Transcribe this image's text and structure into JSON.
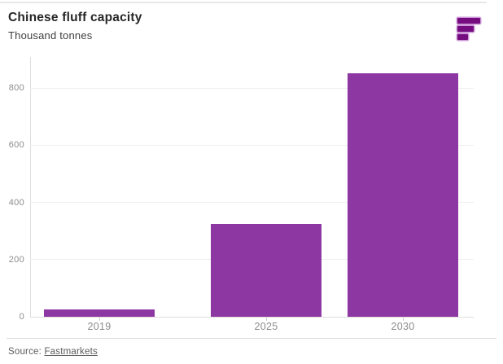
{
  "header": {
    "title": "Chinese fluff capacity",
    "subtitle": "Thousand tonnes"
  },
  "logo": {
    "name": "fastmarkets-logo",
    "color": "#750d81"
  },
  "chart_data": {
    "type": "bar",
    "title": "Chinese fluff capacity",
    "subtitle": "Thousand tonnes",
    "categories": [
      "2019",
      "2025",
      "2030"
    ],
    "values": [
      25,
      325,
      850
    ],
    "xlabel": "",
    "ylabel": "Thousand tonnes",
    "ylim": [
      0,
      900
    ],
    "yticks": [
      0,
      200,
      400,
      600,
      800
    ],
    "bar_color": "#8d37a2",
    "grid": true,
    "legend": false
  },
  "footer": {
    "source_label": "Source:",
    "source_link": "Fastmarkets"
  }
}
